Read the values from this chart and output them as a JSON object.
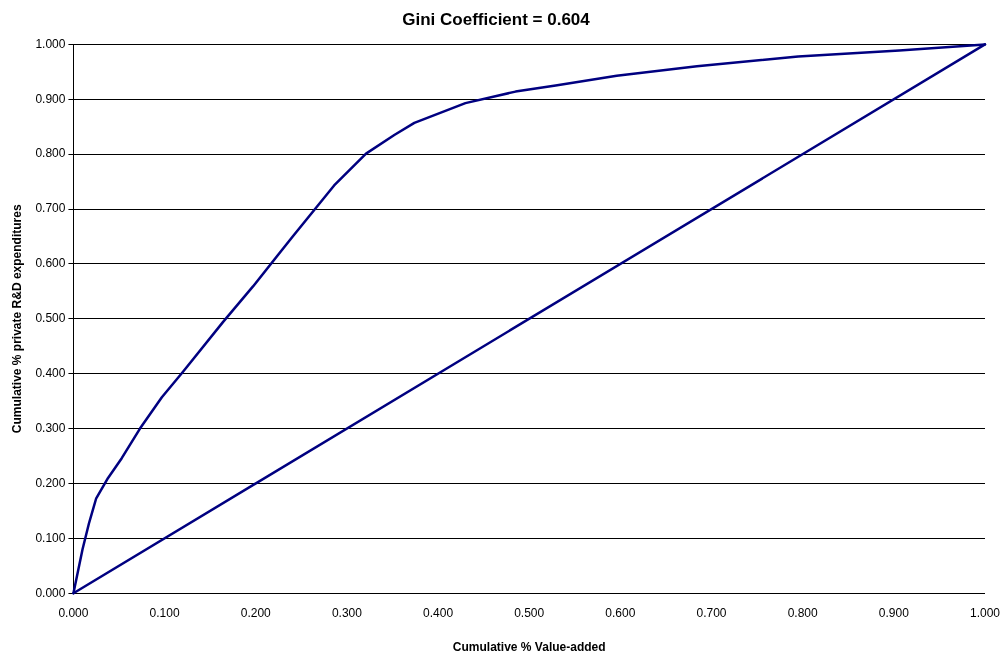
{
  "chart_data": {
    "type": "line",
    "title": "Gini Coefficient = 0.604",
    "xlabel": "Cumulative % Value-added",
    "ylabel": "Cumulative % private R&D expenditures",
    "series": [
      {
        "color": "#000080",
        "x": [
          0,
          0.005,
          0.01,
          0.017,
          0.025,
          0.038,
          0.053,
          0.073,
          0.097,
          0.12,
          0.164,
          0.197,
          0.241,
          0.286,
          0.321,
          0.352,
          0.374,
          0.43,
          0.485,
          0.529,
          0.596,
          0.684,
          0.795,
          0.906,
          1
        ],
        "values": [
          0,
          0.04,
          0.08,
          0.127,
          0.173,
          0.21,
          0.246,
          0.3,
          0.357,
          0.403,
          0.494,
          0.559,
          0.651,
          0.743,
          0.801,
          0.835,
          0.857,
          0.893,
          0.914,
          0.925,
          0.943,
          0.96,
          0.978,
          0.989,
          1
        ]
      },
      {
        "color": "#000080",
        "x": [
          0,
          1
        ],
        "values": [
          0,
          1
        ]
      }
    ],
    "xlim": [
      0,
      1
    ],
    "ylim": [
      0,
      1
    ],
    "xticks": [
      {
        "value": 0,
        "label": "0.000"
      },
      {
        "value": 0.1,
        "label": "0.100"
      },
      {
        "value": 0.2,
        "label": "0.200"
      },
      {
        "value": 0.3,
        "label": "0.300"
      },
      {
        "value": 0.4,
        "label": "0.400"
      },
      {
        "value": 0.5,
        "label": "0.500"
      },
      {
        "value": 0.6,
        "label": "0.600"
      },
      {
        "value": 0.7,
        "label": "0.700"
      },
      {
        "value": 0.8,
        "label": "0.800"
      },
      {
        "value": 0.9,
        "label": "0.900"
      },
      {
        "value": 1,
        "label": "1.000"
      }
    ],
    "yticks": [
      {
        "value": 0,
        "label": "0.000"
      },
      {
        "value": 0.1,
        "label": "0.100"
      },
      {
        "value": 0.2,
        "label": "0.200"
      },
      {
        "value": 0.3,
        "label": "0.300"
      },
      {
        "value": 0.4,
        "label": "0.400"
      },
      {
        "value": 0.5,
        "label": "0.500"
      },
      {
        "value": 0.6,
        "label": "0.600"
      },
      {
        "value": 0.7,
        "label": "0.700"
      },
      {
        "value": 0.8,
        "label": "0.800"
      },
      {
        "value": 0.9,
        "label": "0.900"
      },
      {
        "value": 1,
        "label": "1.000"
      }
    ],
    "grid": "y",
    "legend": false,
    "marker": "none",
    "line_style": "solid"
  }
}
